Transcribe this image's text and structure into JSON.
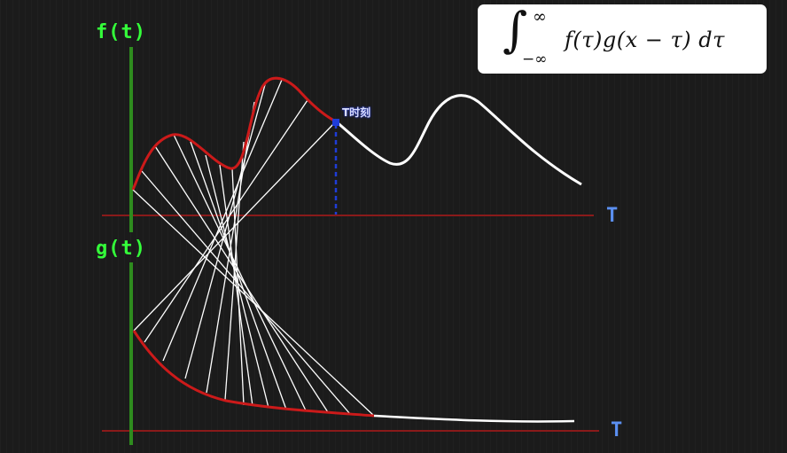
{
  "f_axis": {
    "label": "f(t)"
  },
  "g_axis": {
    "label": "g(t)"
  },
  "tau_axis_top": {
    "label": "T"
  },
  "tau_axis_bottom": {
    "label": "T"
  },
  "marker": {
    "label": "T时刻"
  },
  "formula": {
    "integral": "∫",
    "upper_limit": "∞",
    "lower_limit": "−∞",
    "integrand": "f(τ)g(x − τ) dτ"
  },
  "colors": {
    "background": "#1b1b1b",
    "axis_vertical": "#2e8b1e",
    "axis_horizontal": "#8a1a1a",
    "highlight_curve": "#cc1a1a",
    "curve": "#ffffff",
    "connector_lines": "#ffffff",
    "marker": "#1f3dd8",
    "axis_label": "#34ff3a",
    "tau_label": "#5b8ff0"
  }
}
